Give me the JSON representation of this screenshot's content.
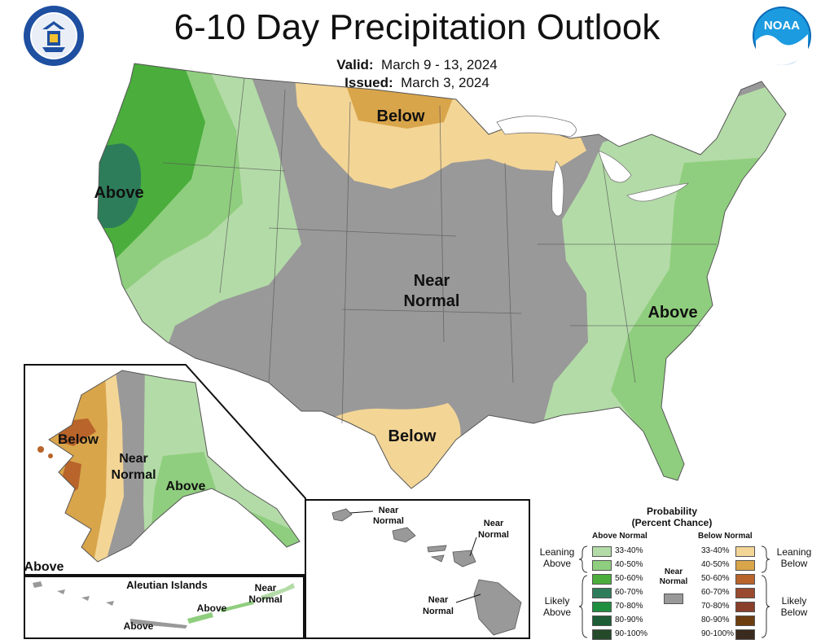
{
  "header": {
    "title": "6-10 Day Precipitation Outlook",
    "valid_label": "Valid:",
    "valid_value": "March 9 - 13, 2024",
    "issued_label": "Issued:",
    "issued_value": "March 3, 2024",
    "left_logo": "department-of-commerce-seal",
    "right_logo": "noaa-logo",
    "right_logo_text": "NOAA"
  },
  "map": {
    "conus": {
      "above_west": "Above",
      "below_north": "Below",
      "near_normal_1": "Near",
      "near_normal_2": "Normal",
      "above_east": "Above",
      "below_texas": "Below"
    },
    "alaska": {
      "below": "Below",
      "near_1": "Near",
      "near_2": "Normal",
      "above": "Above",
      "above_corner": "Above"
    },
    "aleutians": {
      "title": "Aleutian Islands",
      "near_1": "Near",
      "near_2": "Normal",
      "above_1": "Above",
      "above_2": "Above"
    },
    "hawaii": {
      "nw_1": "Near",
      "nw_2": "Normal",
      "ne_1": "Near",
      "ne_2": "Normal",
      "s_1": "Near",
      "s_2": "Normal"
    }
  },
  "legend": {
    "title_1": "Probability",
    "title_2": "(Percent Chance)",
    "above_header": "Above Normal",
    "below_header": "Below Normal",
    "near_1": "Near",
    "near_2": "Normal",
    "leaning_above_1": "Leaning",
    "leaning_above_2": "Above",
    "likely_above_1": "Likely",
    "likely_above_2": "Above",
    "leaning_below_1": "Leaning",
    "leaning_below_2": "Below",
    "likely_below_1": "Likely",
    "likely_below_2": "Below",
    "above_bins": [
      {
        "range": "33-40%",
        "color": "#b3dba7"
      },
      {
        "range": "40-50%",
        "color": "#8fce7e"
      },
      {
        "range": "50-60%",
        "color": "#4aad3c"
      },
      {
        "range": "60-70%",
        "color": "#2e7d5a"
      },
      {
        "range": "70-80%",
        "color": "#1f8f3f"
      },
      {
        "range": "80-90%",
        "color": "#1d5e36"
      },
      {
        "range": "90-100%",
        "color": "#254a2a"
      }
    ],
    "below_bins": [
      {
        "range": "33-40%",
        "color": "#f3d596"
      },
      {
        "range": "40-50%",
        "color": "#d9a54a"
      },
      {
        "range": "50-60%",
        "color": "#b8642b"
      },
      {
        "range": "60-70%",
        "color": "#9a4a2e"
      },
      {
        "range": "70-80%",
        "color": "#8a3f2b"
      },
      {
        "range": "80-90%",
        "color": "#6d3d10"
      },
      {
        "range": "90-100%",
        "color": "#3b2a1e"
      }
    ],
    "near_color": "#999999"
  }
}
